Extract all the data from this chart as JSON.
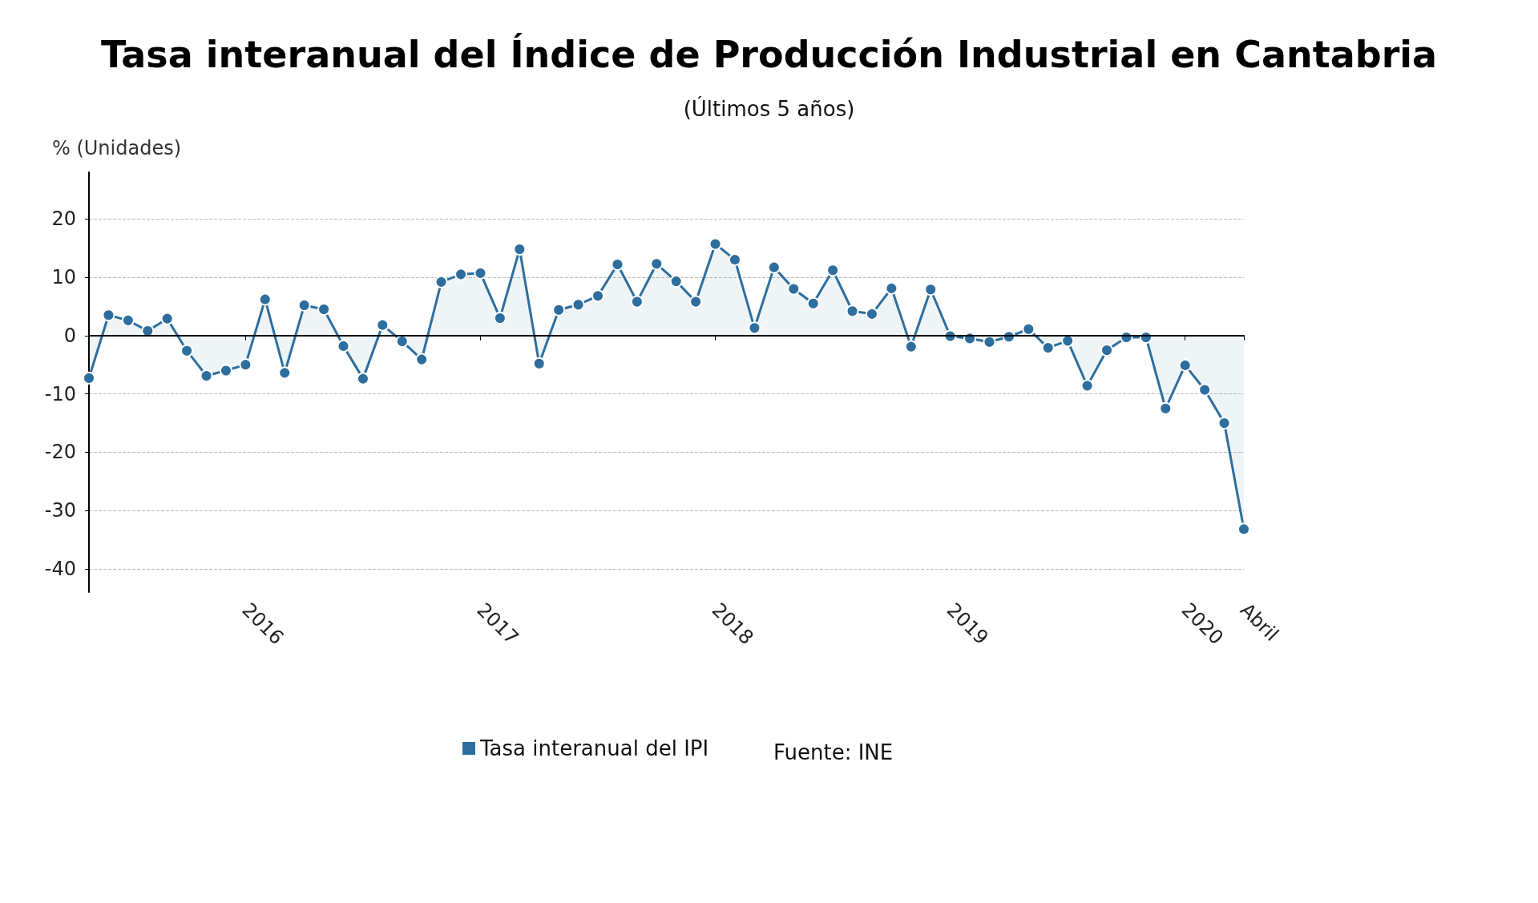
{
  "chart_data": {
    "type": "area",
    "title": "Tasa interanual del Índice de Producción Industrial en Cantabria",
    "subtitle": "(Últimos 5 años)",
    "ylabel": "% (Unidades)",
    "categories": [
      null,
      null,
      null,
      null,
      null,
      null,
      null,
      null,
      "2016",
      null,
      null,
      null,
      null,
      null,
      null,
      null,
      null,
      null,
      null,
      null,
      "2017",
      null,
      null,
      null,
      null,
      null,
      null,
      null,
      null,
      null,
      null,
      null,
      "2018",
      null,
      null,
      null,
      null,
      null,
      null,
      null,
      null,
      null,
      null,
      null,
      "2019",
      null,
      null,
      null,
      null,
      null,
      null,
      null,
      null,
      null,
      null,
      null,
      "2020",
      null,
      null,
      "Abril"
    ],
    "series": [
      {
        "name": "Tasa interanual del IPI",
        "color": "#2e6e9e",
        "values": [
          -7.3,
          3.5,
          2.6,
          0.8,
          2.9,
          -2.6,
          -6.9,
          -6.0,
          -5.0,
          6.2,
          -6.4,
          5.2,
          4.5,
          -1.8,
          -7.4,
          1.8,
          -1.0,
          -4.1,
          9.2,
          10.5,
          10.7,
          3.0,
          14.8,
          -4.8,
          4.4,
          5.3,
          6.8,
          12.2,
          5.8,
          12.3,
          9.3,
          5.8,
          15.7,
          13.0,
          1.3,
          11.7,
          8.0,
          5.5,
          11.2,
          4.2,
          3.7,
          8.1,
          -1.9,
          7.9,
          -0.1,
          -0.5,
          -1.1,
          -0.2,
          1.1,
          -2.1,
          -0.9,
          -8.6,
          -2.5,
          -0.3,
          -0.3,
          -12.5,
          -5.1,
          -9.3,
          -15.0,
          -33.2
        ]
      }
    ],
    "ylim": [
      -44,
      28
    ],
    "yticks": [
      -40,
      -30,
      -20,
      -10,
      0,
      10,
      20
    ],
    "grid": "y",
    "legend": "bottom",
    "marker": "circle",
    "line_style": "solid",
    "annotations": [
      "Fuente: INE"
    ]
  }
}
